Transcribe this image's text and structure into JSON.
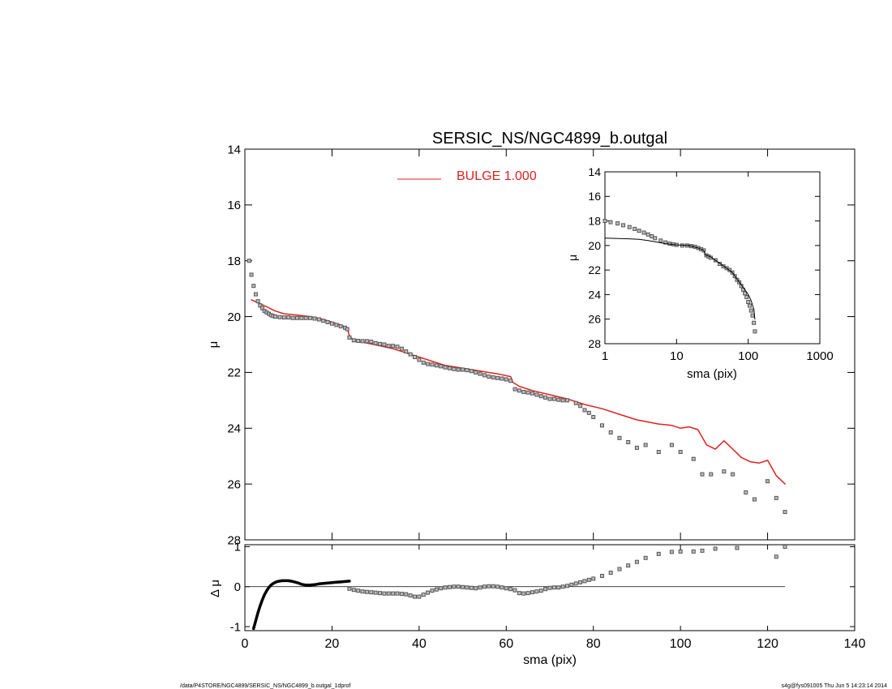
{
  "footer": {
    "left": "/data/P4STORE/NGC4899/SERSIC_NS/NGC4899_b.outgal_1dprof",
    "right": "s4g@fys091005  Thu Jun  5 14:23:14 2014"
  },
  "colors": {
    "model": "#e02020",
    "data": "#555555",
    "axis": "#000000"
  },
  "chart_data": [
    {
      "id": "main",
      "type": "scatter",
      "title": "SERSIC_NS/NGC4899_b.outgal",
      "xlabel": "",
      "ylabel": "μ",
      "xlim": [
        0,
        140
      ],
      "ylim": [
        28,
        14
      ],
      "y_inverted": true,
      "xticks": [
        0,
        20,
        40,
        60,
        80,
        100,
        120,
        140
      ],
      "xticklabels": [],
      "yticks": [
        14,
        16,
        18,
        20,
        22,
        24,
        26,
        28
      ],
      "legend": {
        "label": "BULGE  1.000",
        "color": "#e02020",
        "placement": "top-center"
      },
      "series": [
        {
          "name": "BULGE  1.000",
          "kind": "line",
          "color": "#e02020",
          "x": [
            1.5,
            3,
            5,
            7,
            9,
            12,
            15,
            18,
            20,
            22,
            23.5,
            24,
            25,
            28,
            31,
            34,
            37,
            40,
            43,
            46,
            50,
            54,
            58,
            61,
            61.5,
            63,
            66,
            70,
            74,
            78,
            82,
            86,
            90,
            95,
            98,
            100,
            102,
            104,
            106,
            108,
            110,
            112,
            114,
            116,
            118,
            120,
            122,
            124
          ],
          "y": [
            19.4,
            19.5,
            19.65,
            19.8,
            19.9,
            19.95,
            20.0,
            20.1,
            20.2,
            20.3,
            20.4,
            20.7,
            20.85,
            20.95,
            21.05,
            21.15,
            21.3,
            21.45,
            21.6,
            21.75,
            21.85,
            21.95,
            22.05,
            22.15,
            22.35,
            22.5,
            22.65,
            22.8,
            22.95,
            23.15,
            23.3,
            23.5,
            23.7,
            23.85,
            23.9,
            24.0,
            23.95,
            24.05,
            24.6,
            24.75,
            24.45,
            24.75,
            25.05,
            25.2,
            25.25,
            25.15,
            25.7,
            26.0
          ]
        },
        {
          "name": "",
          "kind": "points",
          "color": "#555555",
          "x": [
            1,
            1.5,
            2,
            2.5,
            3,
            3.5,
            4,
            4.5,
            5,
            5.5,
            6,
            6.5,
            7,
            8,
            9,
            10,
            11,
            12,
            13,
            14,
            15,
            16,
            17,
            18,
            19,
            20,
            21,
            22,
            23,
            23.5,
            24,
            25,
            26,
            27,
            28,
            29,
            30,
            31,
            32,
            33,
            34,
            35,
            36,
            37,
            38,
            39,
            40,
            41,
            42,
            43,
            44,
            45,
            46,
            47,
            48,
            49,
            50,
            51,
            52,
            53,
            54,
            55,
            56,
            57,
            58,
            59,
            60,
            61,
            62,
            63,
            64,
            65,
            66,
            67,
            68,
            69,
            70,
            71,
            72,
            73,
            74,
            76,
            77,
            78,
            79,
            80,
            82,
            84,
            86,
            88,
            90,
            92,
            95,
            98,
            100,
            103,
            105,
            107,
            110,
            112,
            115,
            117,
            120,
            122,
            124
          ],
          "y": [
            18.0,
            18.5,
            18.9,
            19.2,
            19.45,
            19.6,
            19.7,
            19.8,
            19.85,
            19.9,
            19.95,
            19.98,
            20.0,
            20.02,
            20.03,
            20.03,
            20.05,
            20.05,
            20.05,
            20.05,
            20.05,
            20.07,
            20.1,
            20.15,
            20.2,
            20.25,
            20.3,
            20.35,
            20.4,
            20.45,
            20.75,
            20.85,
            20.87,
            20.88,
            20.88,
            20.9,
            20.95,
            20.98,
            21.0,
            21.05,
            21.05,
            21.08,
            21.15,
            21.25,
            21.35,
            21.45,
            21.55,
            21.65,
            21.7,
            21.72,
            21.75,
            21.78,
            21.82,
            21.85,
            21.88,
            21.9,
            21.9,
            21.92,
            21.95,
            22.0,
            22.05,
            22.1,
            22.15,
            22.18,
            22.2,
            22.22,
            22.25,
            22.3,
            22.6,
            22.65,
            22.7,
            22.72,
            22.75,
            22.8,
            22.85,
            22.9,
            22.95,
            22.95,
            22.98,
            23.0,
            23.0,
            23.1,
            23.2,
            23.35,
            23.45,
            23.6,
            23.9,
            24.15,
            24.35,
            24.5,
            24.7,
            24.6,
            24.85,
            24.6,
            24.85,
            25.1,
            25.65,
            25.65,
            25.55,
            25.65,
            26.3,
            26.55,
            25.9,
            26.5,
            27.0
          ]
        }
      ]
    },
    {
      "id": "residual",
      "type": "scatter",
      "title": "",
      "xlabel": "sma (pix)",
      "ylabel": "Δ μ",
      "xlim": [
        0,
        140
      ],
      "ylim": [
        -1.1,
        1.05
      ],
      "xticks": [
        0,
        20,
        40,
        60,
        80,
        100,
        120,
        140
      ],
      "xticklabels": [
        "0",
        "20",
        "40",
        "60",
        "80",
        "100",
        "120",
        "140"
      ],
      "yticks": [
        -1,
        0,
        1
      ],
      "zero_line": {
        "x": [
          0,
          124
        ],
        "y": 0
      },
      "series": [
        {
          "name": "",
          "kind": "thick-line",
          "color": "#000000",
          "x": [
            2,
            2.5,
            3,
            3.5,
            4,
            4.5,
            5,
            5.5,
            6,
            6.5,
            7,
            7.5,
            8,
            8.5,
            9,
            9.5,
            10,
            11,
            12,
            13,
            14,
            15,
            16,
            17,
            18,
            19,
            20,
            21,
            22,
            23,
            24
          ],
          "y": [
            -1.05,
            -0.85,
            -0.65,
            -0.48,
            -0.33,
            -0.2,
            -0.1,
            -0.02,
            0.04,
            0.08,
            0.11,
            0.13,
            0.14,
            0.15,
            0.15,
            0.15,
            0.15,
            0.13,
            0.1,
            0.06,
            0.04,
            0.04,
            0.05,
            0.07,
            0.08,
            0.09,
            0.1,
            0.11,
            0.12,
            0.13,
            0.14
          ]
        },
        {
          "name": "",
          "kind": "points",
          "color": "#555555",
          "x": [
            24,
            25,
            26,
            27,
            28,
            29,
            30,
            31,
            32,
            33,
            34,
            35,
            36,
            37,
            38,
            39,
            40,
            41,
            42,
            43,
            44,
            45,
            46,
            47,
            48,
            49,
            50,
            51,
            52,
            53,
            54,
            55,
            56,
            57,
            58,
            59,
            60,
            61,
            62,
            63,
            64,
            65,
            66,
            67,
            68,
            69,
            70,
            71,
            72,
            73,
            74,
            75,
            76,
            77,
            78,
            79,
            80,
            82,
            84,
            86,
            88,
            90,
            92,
            95,
            98,
            100,
            103,
            105,
            108,
            113,
            122,
            124
          ],
          "y": [
            -0.05,
            -0.08,
            -0.1,
            -0.12,
            -0.13,
            -0.14,
            -0.15,
            -0.16,
            -0.17,
            -0.17,
            -0.17,
            -0.17,
            -0.18,
            -0.19,
            -0.22,
            -0.25,
            -0.25,
            -0.2,
            -0.15,
            -0.1,
            -0.07,
            -0.04,
            -0.02,
            -0.01,
            0.0,
            0.0,
            -0.01,
            -0.02,
            -0.03,
            -0.04,
            -0.02,
            0.0,
            0.01,
            0.01,
            0.0,
            -0.02,
            -0.04,
            -0.06,
            -0.09,
            -0.16,
            -0.17,
            -0.16,
            -0.14,
            -0.12,
            -0.1,
            -0.06,
            -0.03,
            -0.02,
            -0.02,
            0.0,
            0.02,
            0.05,
            0.08,
            0.11,
            0.14,
            0.17,
            0.2,
            0.27,
            0.35,
            0.44,
            0.53,
            0.62,
            0.72,
            0.82,
            0.87,
            0.88,
            0.88,
            0.9,
            0.95,
            0.97,
            0.75,
            1.0
          ]
        }
      ]
    },
    {
      "id": "inset",
      "type": "scatter",
      "title": "",
      "xlabel": "sma (pix)",
      "ylabel": "μ",
      "xscale": "log",
      "xlim": [
        1,
        1000
      ],
      "ylim": [
        28,
        14
      ],
      "y_inverted": true,
      "xticks": [
        1,
        10,
        100,
        1000
      ],
      "xticklabels": [
        "1",
        "10",
        "100",
        "1000"
      ],
      "yticks": [
        14,
        16,
        18,
        20,
        22,
        24,
        26,
        28
      ],
      "series": [
        {
          "name": "",
          "kind": "points",
          "color": "#555555",
          "x": [
            1,
            1.2,
            1.5,
            1.8,
            2.2,
            2.6,
            3,
            3.5,
            4,
            4.5,
            5,
            6,
            7,
            8,
            9,
            10,
            12,
            14,
            16,
            18,
            20,
            22,
            24,
            26,
            28,
            30,
            35,
            40,
            45,
            50,
            55,
            60,
            65,
            70,
            75,
            80,
            85,
            90,
            95,
            100,
            105,
            110,
            115,
            120,
            124
          ],
          "y": [
            18.0,
            18.1,
            18.2,
            18.35,
            18.5,
            18.65,
            18.8,
            18.95,
            19.1,
            19.25,
            19.4,
            19.6,
            19.75,
            19.85,
            19.9,
            19.95,
            20.0,
            20.0,
            20.05,
            20.1,
            20.2,
            20.3,
            20.4,
            20.8,
            20.9,
            21.0,
            21.2,
            21.5,
            21.7,
            21.85,
            22.0,
            22.2,
            22.5,
            22.8,
            23.0,
            23.3,
            23.6,
            23.9,
            24.2,
            24.6,
            24.9,
            25.3,
            25.7,
            26.3,
            27.0
          ]
        },
        {
          "name": "",
          "kind": "line",
          "color": "#000000",
          "x": [
            1,
            2,
            3,
            4,
            5,
            7,
            10,
            15,
            20,
            24,
            25,
            30,
            40,
            50,
            60,
            70,
            80,
            90,
            100,
            110,
            120,
            124
          ],
          "y": [
            19.4,
            19.45,
            19.5,
            19.6,
            19.7,
            19.85,
            19.95,
            20.0,
            20.2,
            20.4,
            20.75,
            20.95,
            21.45,
            21.85,
            22.2,
            22.75,
            23.2,
            23.6,
            24.0,
            24.5,
            25.2,
            26.0
          ]
        }
      ]
    }
  ]
}
